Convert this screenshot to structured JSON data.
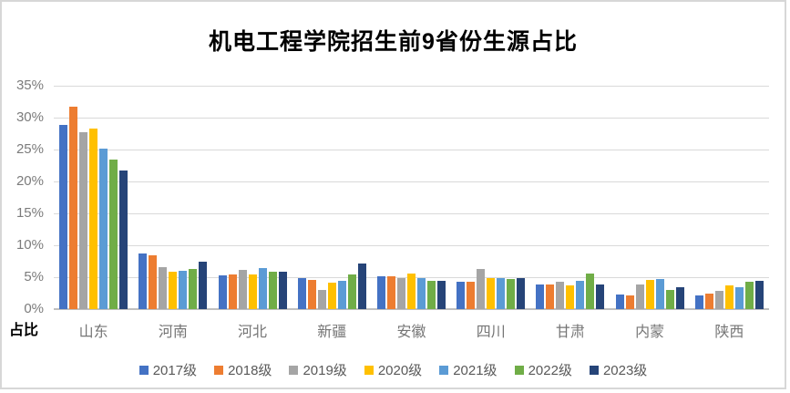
{
  "chart_data": {
    "type": "bar",
    "title": "机电工程学院招生前9省份生源占比",
    "ylabel": "占比",
    "xlabel": "",
    "ylim": [
      0,
      35
    ],
    "grid": true,
    "legend_position": "bottom",
    "ytick_labels": [
      "0%",
      "5%",
      "10%",
      "15%",
      "20%",
      "25%",
      "30%",
      "35%"
    ],
    "ytick_values": [
      0,
      5,
      10,
      15,
      20,
      25,
      30,
      35
    ],
    "categories": [
      "山东",
      "河南",
      "河北",
      "新疆",
      "安徽",
      "四川",
      "甘肃",
      "内蒙",
      "陕西"
    ],
    "series": [
      {
        "name": "2017级",
        "color": "#4472C4",
        "values": [
          28.8,
          8.7,
          5.3,
          4.8,
          5.1,
          4.3,
          3.9,
          2.3,
          2.1
        ]
      },
      {
        "name": "2018级",
        "color": "#ED7D31",
        "values": [
          31.7,
          8.4,
          5.4,
          4.6,
          5.2,
          4.3,
          3.8,
          2.2,
          2.5
        ]
      },
      {
        "name": "2019级",
        "color": "#A5A5A5",
        "values": [
          27.7,
          6.6,
          6.1,
          3.0,
          4.9,
          6.3,
          4.3,
          3.8,
          2.8
        ]
      },
      {
        "name": "2020级",
        "color": "#FFC000",
        "values": [
          28.3,
          5.8,
          5.4,
          4.1,
          5.6,
          4.9,
          3.7,
          4.6,
          3.7
        ]
      },
      {
        "name": "2021级",
        "color": "#5B9BD5",
        "values": [
          25.2,
          6.0,
          6.5,
          4.4,
          4.9,
          4.9,
          4.4,
          4.7,
          3.4
        ]
      },
      {
        "name": "2022级",
        "color": "#70AD47",
        "values": [
          23.5,
          6.3,
          5.8,
          5.4,
          4.5,
          4.7,
          5.6,
          3.0,
          4.3
        ]
      },
      {
        "name": "2023级",
        "color": "#264478",
        "values": [
          21.7,
          7.4,
          5.9,
          7.2,
          4.5,
          4.8,
          3.8,
          3.4,
          4.5
        ]
      }
    ]
  }
}
